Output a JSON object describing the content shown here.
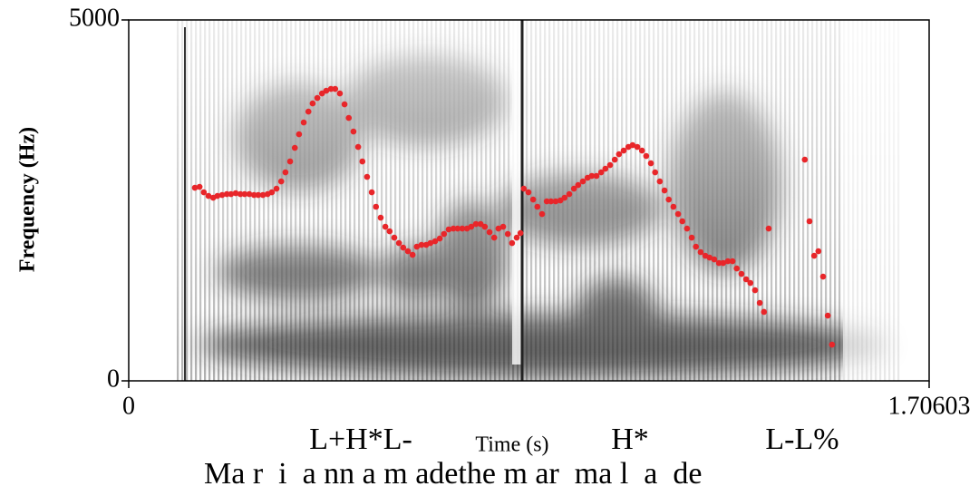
{
  "chart_data": {
    "type": "scatter",
    "xlabel": "Time (s)",
    "ylabel": "Frequency (Hz)",
    "xlim": [
      0,
      1.70603
    ],
    "xticks": [
      0,
      1.70603
    ],
    "ylim": [
      0,
      5000
    ],
    "yticks": [
      0,
      5000
    ],
    "color": "#e8262a",
    "x": [
      0.141,
      0.151,
      0.16,
      0.17,
      0.18,
      0.189,
      0.199,
      0.209,
      0.218,
      0.228,
      0.238,
      0.247,
      0.257,
      0.267,
      0.276,
      0.286,
      0.296,
      0.305,
      0.315,
      0.325,
      0.334,
      0.344,
      0.354,
      0.363,
      0.373,
      0.383,
      0.392,
      0.402,
      0.412,
      0.421,
      0.431,
      0.44,
      0.45,
      0.46,
      0.469,
      0.479,
      0.489,
      0.498,
      0.508,
      0.518,
      0.527,
      0.537,
      0.547,
      0.556,
      0.566,
      0.576,
      0.585,
      0.595,
      0.605,
      0.614,
      0.624,
      0.634,
      0.643,
      0.653,
      0.663,
      0.672,
      0.682,
      0.692,
      0.701,
      0.711,
      0.721,
      0.73,
      0.74,
      0.75,
      0.759,
      0.769,
      0.779,
      0.788,
      0.798,
      0.808,
      0.817,
      0.827,
      0.835,
      0.842,
      0.852,
      0.862,
      0.871,
      0.881,
      0.891,
      0.9,
      0.91,
      0.92,
      0.929,
      0.939,
      0.949,
      0.958,
      0.968,
      0.978,
      0.987,
      0.997,
      1.007,
      1.016,
      1.026,
      1.036,
      1.045,
      1.055,
      1.065,
      1.074,
      1.084,
      1.094,
      1.103,
      1.113,
      1.122,
      1.132,
      1.142,
      1.151,
      1.161,
      1.171,
      1.18,
      1.19,
      1.2,
      1.209,
      1.219,
      1.229,
      1.238,
      1.248,
      1.258,
      1.267,
      1.277,
      1.287,
      1.296,
      1.306,
      1.316,
      1.325,
      1.335,
      1.345,
      1.354,
      1.364,
      1.441,
      1.451,
      1.461,
      1.47,
      1.48,
      1.49,
      1.499
    ],
    "values": [
      2675,
      2688,
      2612,
      2562,
      2537,
      2562,
      2575,
      2587,
      2587,
      2600,
      2587,
      2587,
      2587,
      2575,
      2575,
      2575,
      2587,
      2612,
      2663,
      2763,
      2889,
      3040,
      3228,
      3416,
      3580,
      3730,
      3843,
      3919,
      3982,
      4019,
      4044,
      4044,
      3982,
      3831,
      3642,
      3454,
      3240,
      3040,
      2826,
      2612,
      2412,
      2261,
      2135,
      2072,
      1984,
      1909,
      1846,
      1796,
      1746,
      1859,
      1884,
      1884,
      1909,
      1934,
      1972,
      2035,
      2098,
      2110,
      2110,
      2110,
      2110,
      2135,
      2173,
      2173,
      2135,
      2060,
      1984,
      2110,
      2135,
      2035,
      1909,
      1984,
      2047,
      2663,
      2612,
      2512,
      2412,
      2311,
      2487,
      2487,
      2487,
      2499,
      2537,
      2587,
      2663,
      2713,
      2763,
      2813,
      2839,
      2839,
      2889,
      2939,
      2989,
      3065,
      3140,
      3190,
      3240,
      3266,
      3240,
      3190,
      3115,
      3014,
      2889,
      2763,
      2638,
      2512,
      2412,
      2311,
      2211,
      2110,
      1984,
      1859,
      1784,
      1733,
      1708,
      1683,
      1633,
      1633,
      1658,
      1658,
      1557,
      1482,
      1407,
      1356,
      1256,
      1080,
      955,
      2110,
      3065,
      2211,
      1733,
      1796,
      1444,
      904,
      502
    ],
    "annotations": [
      "L+H*L-",
      "H*",
      "L-L%"
    ],
    "words": "Ma r  i  a nn a m adethe m ar  ma l  a  de"
  }
}
